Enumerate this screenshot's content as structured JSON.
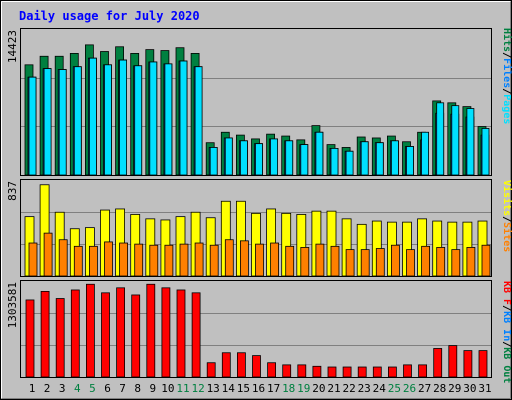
{
  "title": "Daily usage for July 2020",
  "colors": {
    "background": "#c0c0c0",
    "title": "#0000ff",
    "hits": "#008040",
    "files": "#0080ff",
    "pages": "#00e0ff",
    "visits": "#ffff00",
    "sites": "#ff8000",
    "kbytes": "#ff0000",
    "weekend_day": "#008040",
    "weekday": "#000000",
    "grid": "#808080"
  },
  "chart_data": [
    {
      "type": "bar",
      "name": "hits-files-pages",
      "ymax_label": "14423",
      "ylim": [
        0,
        14423
      ],
      "legend": [
        "Hits",
        "/",
        "Files",
        "/",
        "Pages"
      ],
      "x": [
        "1",
        "2",
        "3",
        "4",
        "5",
        "6",
        "7",
        "8",
        "9",
        "10",
        "11",
        "12",
        "13",
        "14",
        "15",
        "16",
        "17",
        "18",
        "19",
        "20",
        "21",
        "22",
        "23",
        "24",
        "25",
        "26",
        "27",
        "28",
        "29",
        "30",
        "31"
      ],
      "series": [
        {
          "name": "Hits",
          "values": [
            11600,
            12500,
            12500,
            12800,
            13700,
            13000,
            13500,
            12800,
            13200,
            13100,
            13400,
            12800,
            3400,
            4500,
            4200,
            3800,
            4300,
            4100,
            3700,
            5200,
            3200,
            2900,
            4000,
            3900,
            4100,
            3500,
            4500,
            7800,
            7600,
            7200,
            5100
          ]
        },
        {
          "name": "Files",
          "values": [
            10300,
            11200,
            11100,
            11400,
            12300,
            11600,
            12100,
            11500,
            11900,
            11700,
            12000,
            11400,
            2900,
            3900,
            3600,
            3300,
            3800,
            3600,
            3200,
            4500,
            2800,
            2500,
            3500,
            3400,
            3600,
            3000,
            3700,
            6500,
            6400,
            6100,
            4200
          ]
        },
        {
          "name": "Pages",
          "values": [
            10300,
            11200,
            11100,
            11400,
            12300,
            11600,
            12100,
            11500,
            11900,
            11700,
            12000,
            11400,
            2900,
            3900,
            3600,
            3300,
            3800,
            3600,
            3200,
            4500,
            2800,
            2500,
            3500,
            3400,
            3600,
            3000,
            4500,
            7600,
            7300,
            7000,
            4900
          ]
        }
      ]
    },
    {
      "type": "bar",
      "name": "visits-sites",
      "ymax_label": "837",
      "ylim": [
        0,
        837
      ],
      "legend": [
        "Visits",
        "/",
        "Sites"
      ],
      "x": [
        "1",
        "2",
        "3",
        "4",
        "5",
        "6",
        "7",
        "8",
        "9",
        "10",
        "11",
        "12",
        "13",
        "14",
        "15",
        "16",
        "17",
        "18",
        "19",
        "20",
        "21",
        "22",
        "23",
        "24",
        "25",
        "26",
        "27",
        "28",
        "29",
        "30",
        "31"
      ],
      "series": [
        {
          "name": "Visits",
          "values": [
            540,
            830,
            580,
            430,
            440,
            600,
            610,
            560,
            520,
            510,
            540,
            580,
            530,
            680,
            680,
            570,
            610,
            570,
            560,
            590,
            590,
            520,
            470,
            500,
            490,
            490,
            520,
            500,
            490,
            490,
            500
          ]
        },
        {
          "name": "Sites",
          "values": [
            300,
            390,
            330,
            270,
            270,
            310,
            300,
            290,
            280,
            280,
            290,
            300,
            280,
            330,
            320,
            290,
            300,
            270,
            260,
            290,
            270,
            240,
            240,
            250,
            280,
            240,
            270,
            260,
            240,
            260,
            280
          ]
        }
      ]
    },
    {
      "type": "bar",
      "name": "kbytes",
      "ymax_label": "1303581",
      "ylim": [
        0,
        1303581
      ],
      "legend": [
        "KB F",
        "/",
        "KB In",
        "/",
        "KB Out"
      ],
      "x": [
        "1",
        "2",
        "3",
        "4",
        "5",
        "6",
        "7",
        "8",
        "9",
        "10",
        "11",
        "12",
        "13",
        "14",
        "15",
        "16",
        "17",
        "18",
        "19",
        "20",
        "21",
        "22",
        "23",
        "24",
        "25",
        "26",
        "27",
        "28",
        "29",
        "30",
        "31"
      ],
      "series": [
        {
          "name": "KB F",
          "values": [
            1080000,
            1200000,
            1100000,
            1220000,
            1300000,
            1180000,
            1250000,
            1150000,
            1300000,
            1250000,
            1220000,
            1180000,
            200000,
            340000,
            340000,
            300000,
            200000,
            170000,
            170000,
            150000,
            140000,
            140000,
            140000,
            140000,
            140000,
            170000,
            170000,
            400000,
            440000,
            370000,
            370000
          ]
        }
      ]
    }
  ],
  "weekend_days": [
    "4",
    "5",
    "11",
    "12",
    "18",
    "19",
    "25",
    "26"
  ]
}
